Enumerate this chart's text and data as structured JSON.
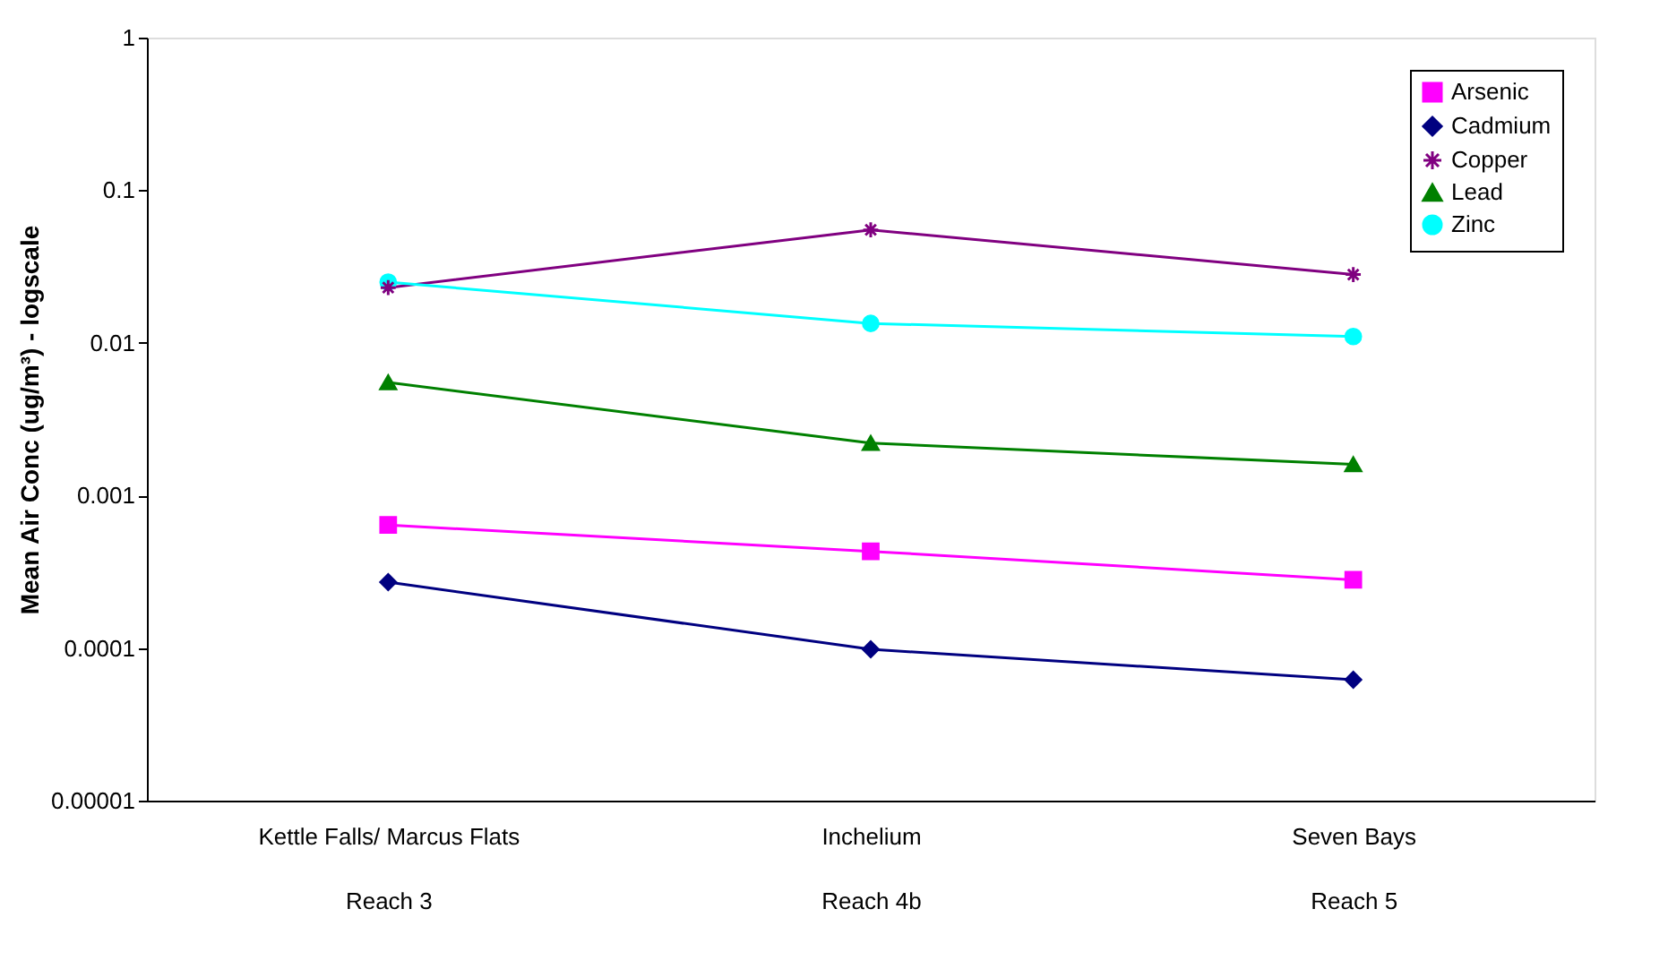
{
  "chart_data": {
    "type": "line",
    "ylabel": "Mean Air Conc (ug/m³) - logscale",
    "categories": [
      "Kettle Falls/ Marcus Flats\nReach 3",
      "Inchelium\nReach 4b",
      "Seven Bays\nReach 5"
    ],
    "log": "y",
    "ylim": [
      1e-05,
      1
    ],
    "yticks": [
      {
        "value": 1e-05,
        "label": "0.00001"
      },
      0.0001,
      0.001,
      0.01,
      0.1,
      1
    ],
    "grid": false,
    "legend": "top right",
    "series": [
      {
        "name": "Arsenic",
        "color": "#ff00ff",
        "marker": "square",
        "values": [
          0.00064,
          0.00043,
          0.00028
        ]
      },
      {
        "name": "Cadmium",
        "color": "#000080",
        "marker": "diamond",
        "values": [
          0.00027,
          9.8e-05,
          6.2e-05
        ]
      },
      {
        "name": "Copper",
        "color": "#800080",
        "marker": "cross",
        "values": [
          0.023,
          0.055,
          0.028
        ]
      },
      {
        "name": "Lead",
        "color": "#008000",
        "marker": "triangle",
        "values": [
          0.0055,
          0.0022,
          0.0016
        ]
      },
      {
        "name": "Zinc",
        "color": "#00ffff",
        "marker": "circle",
        "values": [
          0.025,
          0.0134,
          0.011
        ]
      }
    ]
  }
}
